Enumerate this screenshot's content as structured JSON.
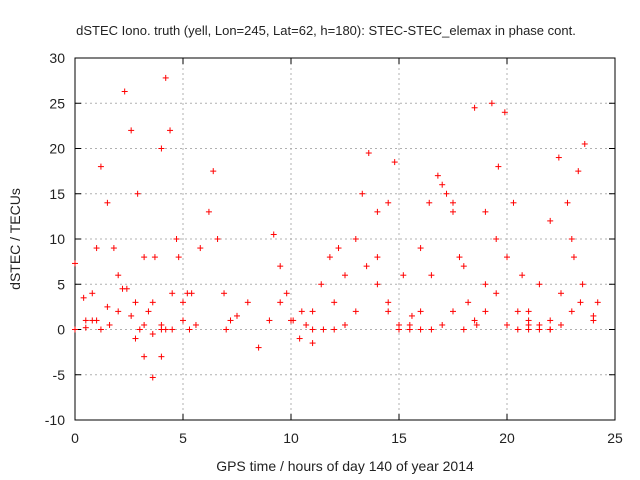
{
  "chart_data": {
    "type": "scatter",
    "title": "dSTEC Iono. truth (yell, Lon=245, Lat=62, h=180): STEC-STEC_elemax in phase cont.",
    "xlabel": "GPS time / hours of day 140 of year 2014",
    "ylabel": "dSTEC  / TECUs",
    "xlim": [
      0,
      25
    ],
    "ylim": [
      -10,
      30
    ],
    "x_ticks": [
      "0",
      "5",
      "10",
      "15",
      "20",
      "25"
    ],
    "y_ticks": [
      "-10",
      "-5",
      "0",
      "5",
      "10",
      "15",
      "20",
      "25",
      "30"
    ],
    "grid": true,
    "marker": "+",
    "color": "#ff0000",
    "series": [
      {
        "x": [
          0.0,
          0.4,
          0.8,
          1.2,
          1.6,
          2.0,
          2.4,
          2.8,
          3.2,
          3.6,
          4.0
        ],
        "y": [
          7.3,
          3.5,
          1.0,
          0.0,
          0.5,
          2.0,
          4.5,
          3.0,
          0.5,
          -0.5,
          0.0
        ]
      },
      {
        "x": [
          0.5,
          0.8,
          1.0,
          1.2,
          1.5,
          1.8,
          2.2,
          2.6,
          3.0
        ],
        "y": [
          1.0,
          4.0,
          9.0,
          18.0,
          14.0,
          9.0,
          4.5,
          1.5,
          0.0
        ]
      },
      {
        "x": [
          0.0,
          0.5,
          1.0,
          1.5,
          2.0,
          2.3,
          2.6,
          2.9,
          3.2,
          3.6,
          4.0,
          4.5
        ],
        "y": [
          0.0,
          0.2,
          1.0,
          2.5,
          6.0,
          26.3,
          22.0,
          15.0,
          8.0,
          3.0,
          0.5,
          0.0
        ]
      },
      {
        "x": [
          2.8,
          3.2,
          3.6,
          4.0,
          4.2,
          4.5,
          4.8,
          5.2,
          5.6
        ],
        "y": [
          -1.0,
          -3.0,
          -5.3,
          -3.0,
          0.0,
          4.0,
          8.0,
          4.0,
          0.5
        ]
      },
      {
        "x": [
          3.4,
          3.7,
          4.0,
          4.2,
          4.4,
          4.7,
          5.0,
          5.3
        ],
        "y": [
          2.0,
          8.0,
          20.0,
          27.8,
          22.0,
          10.0,
          3.0,
          0.0
        ]
      },
      {
        "x": [
          5.0,
          5.4,
          5.8,
          6.2,
          6.4,
          6.6,
          6.9,
          7.2
        ],
        "y": [
          1.0,
          4.0,
          9.0,
          13.0,
          17.5,
          10.0,
          4.0,
          1.0
        ]
      },
      {
        "x": [
          7.0,
          7.5,
          8.0,
          8.5,
          9.0,
          9.5,
          10.0,
          10.5,
          11.0
        ],
        "y": [
          0.0,
          1.5,
          3.0,
          -2.0,
          1.0,
          3.0,
          1.0,
          2.0,
          0.0
        ]
      },
      {
        "x": [
          9.2,
          9.5,
          9.8,
          10.1,
          10.4,
          10.7,
          11.0,
          11.4,
          11.8,
          12.2
        ],
        "y": [
          10.5,
          7.0,
          4.0,
          1.0,
          -1.0,
          0.5,
          2.0,
          5.0,
          8.0,
          9.0
        ]
      },
      {
        "x": [
          11.0,
          11.5,
          12.0,
          12.5,
          13.0,
          13.3,
          13.6,
          14.0,
          14.5,
          15.0,
          15.5
        ],
        "y": [
          -1.5,
          0.0,
          3.0,
          6.0,
          10.0,
          15.0,
          19.5,
          8.0,
          3.0,
          0.5,
          0.0
        ]
      },
      {
        "x": [
          12.0,
          12.5,
          13.0,
          13.5,
          14.0,
          14.5,
          14.8,
          15.2,
          15.6,
          16.0
        ],
        "y": [
          0.0,
          0.5,
          2.0,
          7.0,
          13.0,
          14.0,
          18.5,
          6.0,
          1.5,
          0.0
        ]
      },
      {
        "x": [
          14.0,
          14.5,
          15.0,
          15.5,
          16.0,
          16.5,
          17.0,
          17.5
        ],
        "y": [
          5.0,
          2.0,
          0.0,
          0.5,
          2.0,
          6.0,
          16.0,
          14.0
        ]
      },
      {
        "x": [
          16.0,
          16.4,
          16.8,
          17.2,
          17.5,
          17.8,
          18.2,
          18.6
        ],
        "y": [
          9.0,
          14.0,
          17.0,
          15.0,
          13.0,
          8.0,
          3.0,
          0.5
        ]
      },
      {
        "x": [
          16.5,
          17.0,
          17.5,
          18.0,
          18.5,
          19.0,
          19.5,
          20.0
        ],
        "y": [
          0.0,
          0.5,
          2.0,
          7.0,
          24.5,
          13.0,
          4.0,
          0.5
        ]
      },
      {
        "x": [
          18.0,
          18.5,
          19.0,
          19.3,
          19.6,
          20.0,
          20.5,
          21.0
        ],
        "y": [
          0.0,
          1.0,
          5.0,
          25.0,
          18.0,
          8.0,
          2.0,
          0.0
        ]
      },
      {
        "x": [
          19.0,
          19.5,
          19.9,
          20.3,
          20.7,
          21.0,
          21.5,
          22.0
        ],
        "y": [
          2.0,
          10.0,
          24.0,
          14.0,
          6.0,
          2.0,
          0.5,
          0.0
        ]
      },
      {
        "x": [
          20.5,
          21.0,
          21.5,
          22.0,
          22.4,
          22.8,
          23.1,
          23.4
        ],
        "y": [
          0.0,
          1.0,
          5.0,
          12.0,
          19.0,
          14.0,
          8.0,
          3.0
        ]
      },
      {
        "x": [
          21.0,
          21.5,
          22.0,
          22.5,
          23.0,
          23.3,
          23.6,
          24.0
        ],
        "y": [
          0.5,
          0.0,
          1.0,
          4.0,
          10.0,
          17.5,
          20.5,
          1.0
        ]
      },
      {
        "x": [
          22.0,
          22.5,
          23.0,
          23.5,
          24.0,
          24.2
        ],
        "y": [
          0.0,
          0.5,
          2.0,
          5.0,
          1.5,
          3.0
        ]
      }
    ]
  }
}
